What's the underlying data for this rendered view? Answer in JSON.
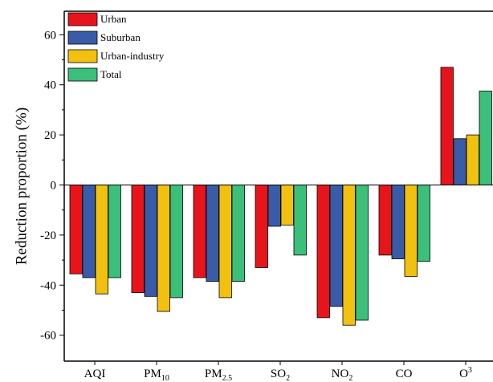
{
  "chart_data": {
    "type": "bar",
    "title": "",
    "xlabel": "",
    "ylabel": "Reduction proportion (%)",
    "ylim": [
      -70,
      70
    ],
    "yticks": [
      -60,
      -40,
      -20,
      0,
      20,
      40,
      60
    ],
    "ytick_labels": [
      "-60",
      "-40",
      "-20",
      "0",
      "20",
      "40",
      "60"
    ],
    "grid": false,
    "legend_position": "top-left",
    "categories": [
      {
        "base": "AQI",
        "sub": ""
      },
      {
        "base": "PM",
        "sub": "10"
      },
      {
        "base": "PM",
        "sub": "2.5"
      },
      {
        "base": "SO",
        "sub": "2"
      },
      {
        "base": "NO",
        "sub": "2"
      },
      {
        "base": "CO",
        "sub": ""
      },
      {
        "base": "O",
        "sup": "3"
      }
    ],
    "series": [
      {
        "name": "Urban",
        "color": "#e8141c",
        "values": [
          -35.5,
          -43,
          -37,
          -33,
          -53,
          -28,
          47
        ]
      },
      {
        "name": "Suburban",
        "color": "#3a5ba8",
        "values": [
          -37,
          -44.5,
          -38.5,
          -16.5,
          -48.5,
          -29.5,
          18.5
        ]
      },
      {
        "name": "Urban-industry",
        "color": "#f2c10f",
        "values": [
          -43.5,
          -50.5,
          -45,
          -16,
          -56,
          -36.5,
          20
        ]
      },
      {
        "name": "Total",
        "color": "#3cbf7a",
        "values": [
          -37,
          -45,
          -38.5,
          -28,
          -54,
          -30.5,
          37.5
        ]
      }
    ]
  }
}
